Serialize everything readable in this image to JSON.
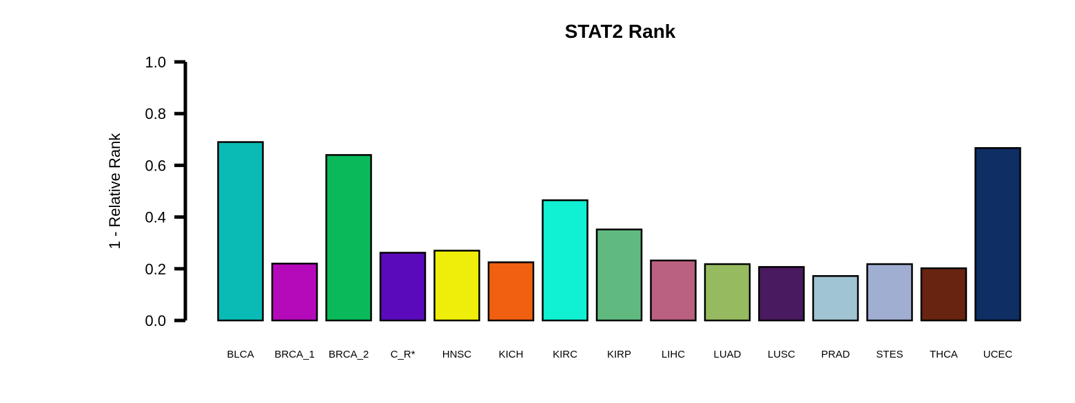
{
  "chart_data": {
    "type": "bar",
    "title": "STAT2 Rank",
    "xlabel": "",
    "ylabel": "1 - Relative Rank",
    "ylim": [
      0,
      1
    ],
    "yticks": [
      0,
      0.2,
      0.4,
      0.6,
      0.8,
      1
    ],
    "ytick_labels": [
      "0.0",
      "0.2",
      "0.4",
      "0.6",
      "0.8",
      "1.0"
    ],
    "grid": false,
    "legend": "none",
    "categories": [
      "BLCA",
      "BRCA_1",
      "BRCA_2",
      "C_R*",
      "HNSC",
      "KICH",
      "KIRC",
      "KIRP",
      "LIHC",
      "LUAD",
      "LUSC",
      "PRAD",
      "STES",
      "THCA",
      "UCEC"
    ],
    "values": [
      0.69,
      0.22,
      0.64,
      0.262,
      0.27,
      0.225,
      0.465,
      0.352,
      0.232,
      0.218,
      0.207,
      0.172,
      0.218,
      0.202,
      0.667
    ],
    "colors": [
      "#0ABAB5",
      "#B40ABA",
      "#0ABA5A",
      "#5A0ABA",
      "#EEEE0A",
      "#F06010",
      "#10F0D2",
      "#60BA80",
      "#BA6080",
      "#96BA60",
      "#4A1A60",
      "#A0C4D2",
      "#A0AED2",
      "#682410",
      "#0E2E64"
    ],
    "bar_edge_color": "#000000",
    "axis_color": "#000000"
  }
}
